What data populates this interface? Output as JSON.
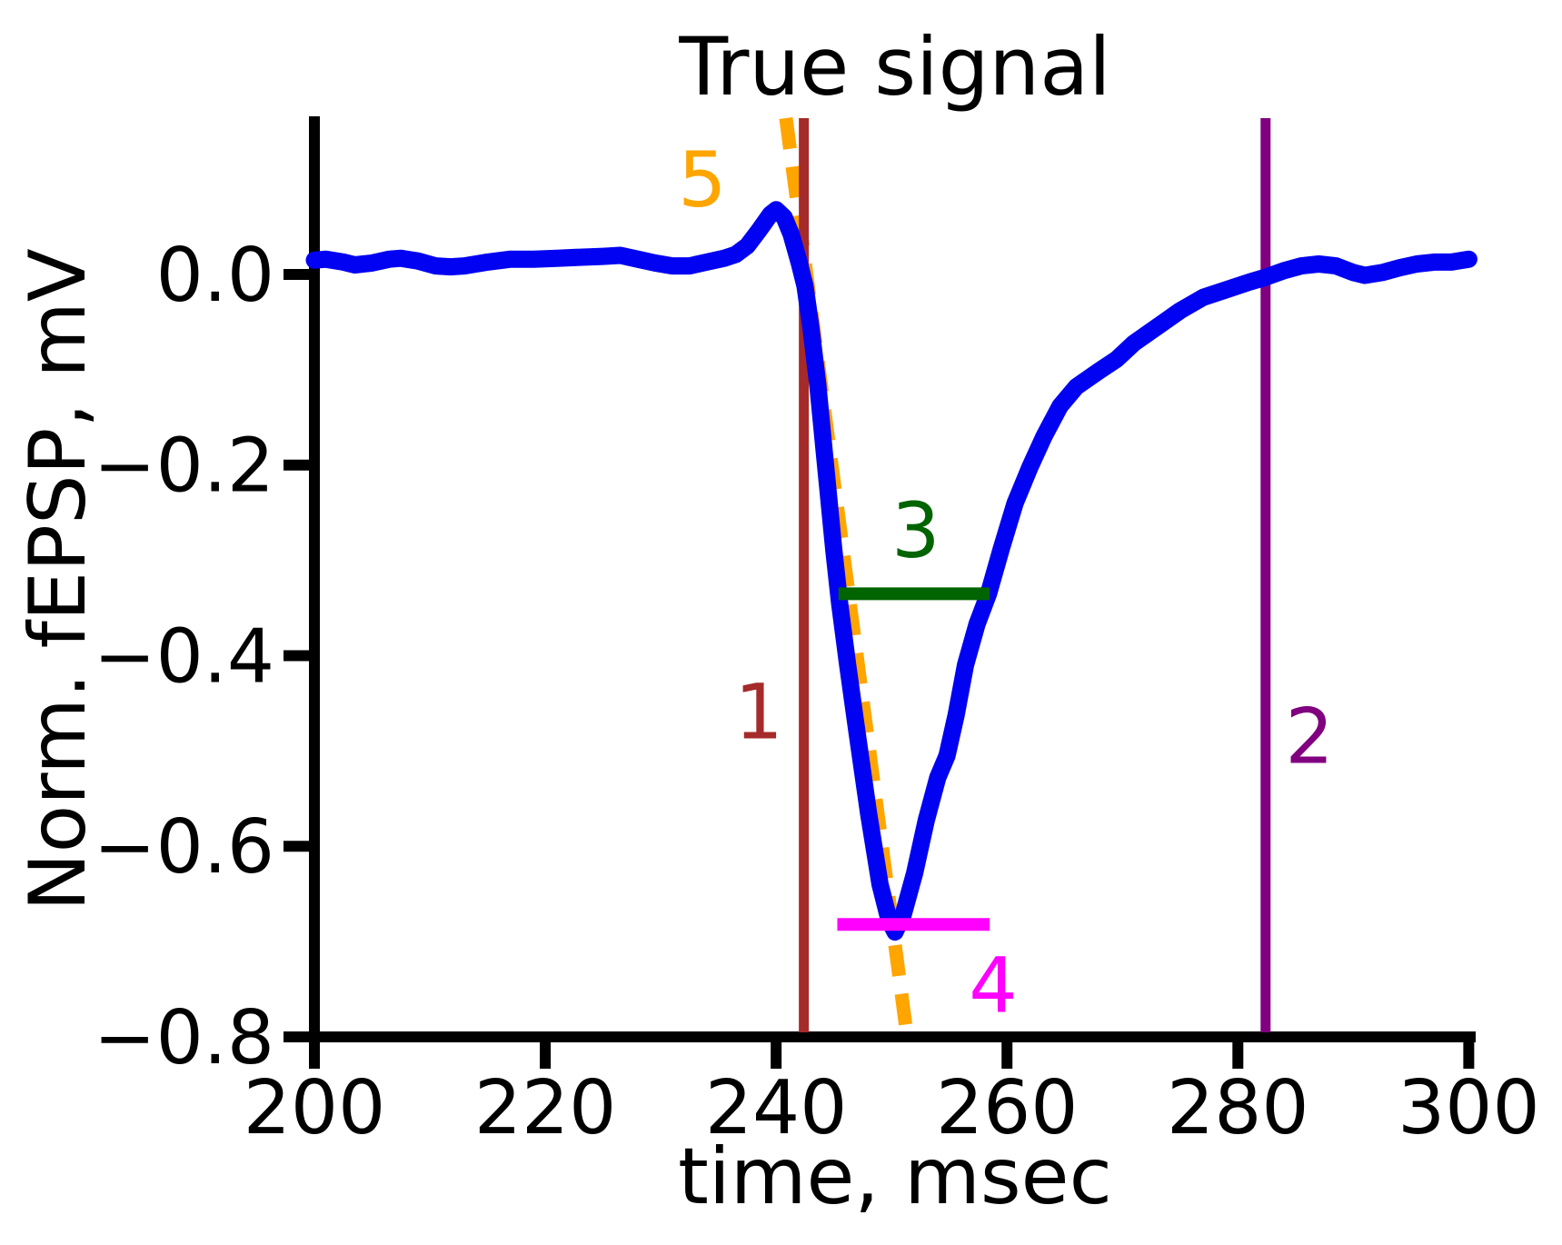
{
  "chart_data": {
    "type": "line",
    "title": "True signal",
    "xlabel": "time, msec",
    "ylabel": "Norm. fEPSP, mV",
    "xlim": [
      200,
      300.6
    ],
    "ylim": [
      -0.8,
      0.164
    ],
    "grid": false,
    "legend": "none",
    "x_ticks": [
      200,
      220,
      240,
      260,
      280,
      300
    ],
    "x_tick_labels": [
      "200",
      "220",
      "240",
      "260",
      "280",
      "300"
    ],
    "y_ticks": [
      0.0,
      -0.2,
      -0.4,
      -0.6,
      -0.8
    ],
    "y_tick_labels": [
      "0.0",
      "−0.2",
      "−0.4",
      "−0.6",
      "−0.8"
    ],
    "axis_color": "#000000",
    "series": [
      {
        "name": "true-fepsp-signal",
        "color": "#0202f2",
        "line_width": 19,
        "points": [
          [
            200,
            0.015
          ],
          [
            201,
            0.016
          ],
          [
            202.5,
            0.013
          ],
          [
            203.5,
            0.01
          ],
          [
            205,
            0.012
          ],
          [
            206.5,
            0.016
          ],
          [
            207.5,
            0.017
          ],
          [
            209,
            0.014
          ],
          [
            210.5,
            0.009
          ],
          [
            211.8,
            0.008
          ],
          [
            213,
            0.009
          ],
          [
            215,
            0.013
          ],
          [
            217,
            0.016
          ],
          [
            219,
            0.016
          ],
          [
            221,
            0.017
          ],
          [
            223,
            0.018
          ],
          [
            225,
            0.019
          ],
          [
            226.5,
            0.02
          ],
          [
            228,
            0.016
          ],
          [
            229.5,
            0.012
          ],
          [
            231,
            0.009
          ],
          [
            232.5,
            0.009
          ],
          [
            234,
            0.013
          ],
          [
            235.5,
            0.017
          ],
          [
            236.5,
            0.021
          ],
          [
            237.5,
            0.03
          ],
          [
            238.5,
            0.046
          ],
          [
            239.5,
            0.063
          ],
          [
            240,
            0.068
          ],
          [
            240.7,
            0.06
          ],
          [
            241.3,
            0.042
          ],
          [
            242,
            0.012
          ],
          [
            242.5,
            -0.012
          ],
          [
            243,
            -0.055
          ],
          [
            243.6,
            -0.115
          ],
          [
            244.2,
            -0.19
          ],
          [
            245,
            -0.29
          ],
          [
            245.5,
            -0.345
          ],
          [
            246.2,
            -0.41
          ],
          [
            247,
            -0.48
          ],
          [
            248,
            -0.565
          ],
          [
            249,
            -0.64
          ],
          [
            249.8,
            -0.678
          ],
          [
            250.3,
            -0.69
          ],
          [
            251,
            -0.672
          ],
          [
            252,
            -0.628
          ],
          [
            253,
            -0.573
          ],
          [
            254,
            -0.528
          ],
          [
            254.8,
            -0.505
          ],
          [
            255.6,
            -0.462
          ],
          [
            256.4,
            -0.41
          ],
          [
            257.4,
            -0.367
          ],
          [
            258.4,
            -0.335
          ],
          [
            259.5,
            -0.288
          ],
          [
            260.7,
            -0.24
          ],
          [
            262,
            -0.202
          ],
          [
            263.2,
            -0.17
          ],
          [
            264.6,
            -0.138
          ],
          [
            266,
            -0.118
          ],
          [
            268,
            -0.101
          ],
          [
            269.5,
            -0.089
          ],
          [
            271,
            -0.072
          ],
          [
            273,
            -0.055
          ],
          [
            275,
            -0.038
          ],
          [
            277,
            -0.024
          ],
          [
            279,
            -0.016
          ],
          [
            281,
            -0.008
          ],
          [
            282.4,
            -0.003
          ],
          [
            284,
            0.004
          ],
          [
            285.5,
            0.009
          ],
          [
            287,
            0.011
          ],
          [
            288.5,
            0.009
          ],
          [
            290,
            0.002
          ],
          [
            291,
            -0.001
          ],
          [
            292.5,
            0.002
          ],
          [
            294,
            0.007
          ],
          [
            295.5,
            0.011
          ],
          [
            297,
            0.013
          ],
          [
            298.5,
            0.013
          ],
          [
            300,
            0.016
          ]
        ]
      }
    ],
    "annotations": {
      "vlines": [
        {
          "label": "1",
          "x": 242.4,
          "color": "#A52A2A",
          "line_width": 11,
          "label_pos": [
            238.5,
            -0.458
          ]
        },
        {
          "label": "2",
          "x": 282.4,
          "color": "#800080",
          "line_width": 11,
          "label_pos": [
            286.2,
            -0.484
          ]
        }
      ],
      "hlines": [
        {
          "label": "3",
          "y": -0.335,
          "x1": 245.4,
          "x2": 258.5,
          "color": "#006400",
          "line_width": 14,
          "label_pos": [
            252.1,
            -0.268
          ]
        },
        {
          "label": "4",
          "y": -0.682,
          "x1": 245.3,
          "x2": 258.5,
          "color": "#FF00FF",
          "line_width": 14,
          "label_pos": [
            258.8,
            -0.745
          ]
        }
      ],
      "slope_line": {
        "label": "5",
        "x1": 240.85,
        "y1": 0.164,
        "x2": 251.35,
        "y2": -0.8,
        "color": "#FFA500",
        "line_width": 15,
        "dashed": true,
        "dash": [
          34,
          20
        ],
        "label_pos": [
          233.6,
          0.1
        ]
      }
    }
  }
}
